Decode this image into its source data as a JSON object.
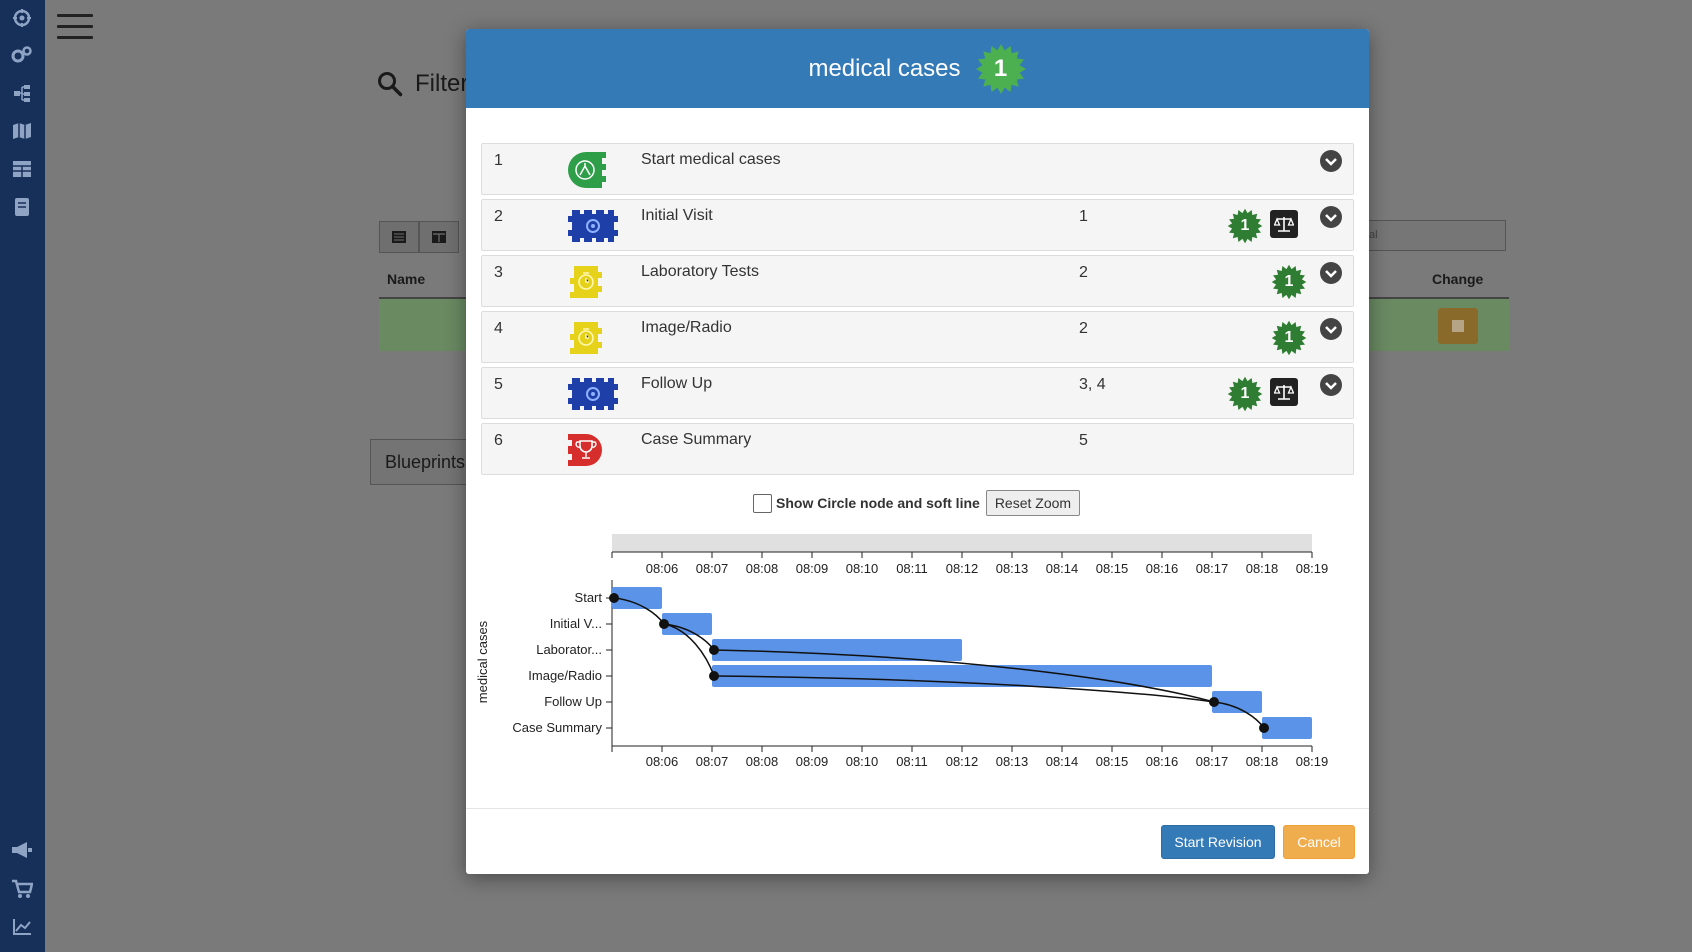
{
  "sidebar": {
    "top_icons": [
      "logo-icon",
      "cogs-icon",
      "sitemap-icon",
      "map-icon",
      "table-icon",
      "book-icon"
    ],
    "bottom_icons": [
      "bullhorn-icon",
      "cart-icon",
      "chart-icon"
    ]
  },
  "background": {
    "filter_label": "Filter",
    "name_header": "Name",
    "change_header": "Change",
    "search_fragment": "al",
    "blueprints_label": "Blueprints"
  },
  "modal": {
    "title": "medical cases",
    "version_badge": "1",
    "steps": [
      {
        "num": "1",
        "label": "Start medical cases",
        "deps": "",
        "badge": "",
        "icon": "start-icon",
        "scale": false
      },
      {
        "num": "2",
        "label": "Initial Visit",
        "deps": "1",
        "badge": "1",
        "icon": "gear-puzzle-icon",
        "scale": true
      },
      {
        "num": "3",
        "label": "Laboratory Tests",
        "deps": "2",
        "badge": "1",
        "icon": "timer-puzzle-icon",
        "scale": false
      },
      {
        "num": "4",
        "label": "Image/Radio",
        "deps": "2",
        "badge": "1",
        "icon": "timer-puzzle-icon",
        "scale": false
      },
      {
        "num": "5",
        "label": "Follow Up",
        "deps": "3, 4",
        "badge": "1",
        "icon": "gear-puzzle-icon",
        "scale": true
      },
      {
        "num": "6",
        "label": "Case Summary",
        "deps": "5",
        "badge": "",
        "icon": "trophy-icon",
        "scale": false
      }
    ],
    "show_circle_label": "Show Circle node and soft line",
    "reset_zoom_label": "Reset Zoom",
    "start_revision_label": "Start Revision",
    "cancel_label": "Cancel"
  },
  "colors": {
    "header_blue": "#337ab7",
    "bar_blue": "#5b93e8",
    "badge_green": "#2e7d32",
    "badge_light_green": "#4caf50",
    "sidebar_navy": "#16305a"
  },
  "chart_data": {
    "type": "gantt",
    "ylabel": "medical cases",
    "x_ticks": [
      "08:06",
      "08:07",
      "08:08",
      "08:09",
      "08:10",
      "08:11",
      "08:12",
      "08:13",
      "08:14",
      "08:15",
      "08:16",
      "08:17",
      "08:18",
      "08:19"
    ],
    "x_range": [
      "08:05",
      "08:19"
    ],
    "tasks": [
      {
        "name": "Start",
        "start": "08:05",
        "end": "08:06"
      },
      {
        "name": "Initial V...",
        "start": "08:06",
        "end": "08:07"
      },
      {
        "name": "Laborator...",
        "start": "08:07",
        "end": "08:12"
      },
      {
        "name": "Image/Radio",
        "start": "08:07",
        "end": "08:17"
      },
      {
        "name": "Follow Up",
        "start": "08:17",
        "end": "08:18"
      },
      {
        "name": "Case Summary",
        "start": "08:18",
        "end": "08:19"
      }
    ],
    "links": [
      [
        0,
        1
      ],
      [
        1,
        2
      ],
      [
        1,
        3
      ],
      [
        2,
        4
      ],
      [
        3,
        4
      ],
      [
        4,
        5
      ]
    ]
  }
}
